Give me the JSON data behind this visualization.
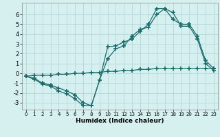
{
  "xlabel": "Humidex (Indice chaleur)",
  "background_color": "#d6f0ef",
  "grid_color": "#b8dada",
  "line_color": "#1a6b6b",
  "xlim": [
    -0.5,
    23.5
  ],
  "ylim": [
    -3.7,
    7.2
  ],
  "yticks": [
    -3,
    -2,
    -1,
    0,
    1,
    2,
    3,
    4,
    5,
    6
  ],
  "xticks": [
    0,
    1,
    2,
    3,
    4,
    5,
    6,
    7,
    8,
    9,
    10,
    11,
    12,
    13,
    14,
    15,
    16,
    17,
    18,
    19,
    20,
    21,
    22,
    23
  ],
  "line1_x": [
    0,
    1,
    2,
    3,
    4,
    5,
    6,
    7,
    8,
    9,
    10,
    11,
    12,
    13,
    14,
    15,
    16,
    17,
    18,
    19,
    20,
    21,
    22,
    23
  ],
  "line1_y": [
    -0.3,
    -0.6,
    -1.1,
    -1.3,
    -1.8,
    -2.1,
    -2.6,
    -3.3,
    -3.3,
    -0.7,
    2.7,
    2.8,
    3.2,
    3.5,
    4.3,
    5.0,
    6.6,
    6.6,
    5.5,
    5.0,
    5.0,
    3.8,
    1.3,
    0.5
  ],
  "line2_x": [
    0,
    1,
    2,
    3,
    4,
    5,
    6,
    7,
    8,
    9,
    10,
    11,
    12,
    13,
    14,
    15,
    16,
    17,
    18,
    19,
    20,
    21,
    22,
    23
  ],
  "line2_y": [
    -0.3,
    -0.5,
    -1.0,
    -1.2,
    -1.5,
    -1.8,
    -2.2,
    -3.0,
    -3.3,
    -0.7,
    1.5,
    2.5,
    2.8,
    3.8,
    4.5,
    4.7,
    6.0,
    6.6,
    6.2,
    4.8,
    4.8,
    3.5,
    1.0,
    0.3
  ],
  "line3_x": [
    0,
    1,
    2,
    3,
    4,
    5,
    6,
    7,
    8,
    9,
    10,
    11,
    12,
    13,
    14,
    15,
    16,
    17,
    18,
    19,
    20,
    21,
    22,
    23
  ],
  "line3_y": [
    -0.3,
    -0.2,
    -0.2,
    -0.2,
    -0.1,
    -0.1,
    0.0,
    0.0,
    0.1,
    0.1,
    0.2,
    0.2,
    0.3,
    0.3,
    0.4,
    0.4,
    0.5,
    0.5,
    0.5,
    0.5,
    0.5,
    0.5,
    0.5,
    0.5
  ]
}
